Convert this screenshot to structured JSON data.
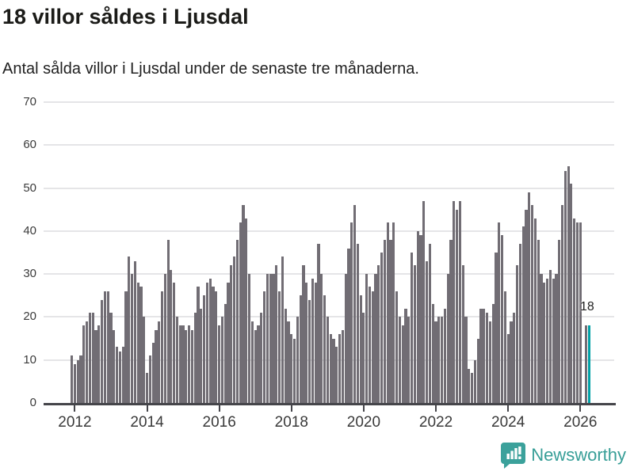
{
  "report": {
    "title": "18 villor såldes i Ljusdal",
    "subtitle": "Antal sålda villor i Ljusdal under de senaste tre månaderna."
  },
  "annotation": {
    "current_value_label": "18"
  },
  "footer": {
    "brand": "Newsworthy"
  },
  "colors": {
    "bar": "#716d74",
    "highlight": "#00a1a7",
    "grid": "#e5e5e7",
    "axis": "#45454a",
    "text": "#222222",
    "brand_teal": "#379e97"
  },
  "chart_data": {
    "type": "bar",
    "title": "18 villor såldes i Ljusdal",
    "subtitle": "Antal sålda villor i Ljusdal under de senaste tre månaderna.",
    "unit": "antal sålda villor (rullande tre månader)",
    "x_start": "2011-12",
    "frequency": "monthly",
    "values": [
      11,
      9,
      10,
      11,
      18,
      19,
      21,
      21,
      17,
      18,
      24,
      26,
      26,
      21,
      17,
      13,
      12,
      13,
      26,
      34,
      30,
      33,
      28,
      27,
      20,
      7,
      11,
      14,
      17,
      19,
      26,
      30,
      38,
      31,
      28,
      20,
      18,
      18,
      17,
      18,
      17,
      21,
      27,
      22,
      25,
      28,
      29,
      27,
      26,
      18,
      20,
      23,
      28,
      32,
      34,
      38,
      42,
      46,
      43,
      30,
      19,
      17,
      18,
      21,
      26,
      30,
      30,
      30,
      32,
      26,
      34,
      22,
      19,
      16,
      15,
      20,
      25,
      32,
      28,
      24,
      29,
      28,
      37,
      30,
      25,
      20,
      16,
      15,
      13,
      16,
      17,
      30,
      36,
      42,
      46,
      37,
      25,
      21,
      30,
      27,
      26,
      30,
      32,
      35,
      38,
      42,
      38,
      42,
      26,
      20,
      18,
      22,
      20,
      35,
      32,
      40,
      39,
      47,
      33,
      37,
      23,
      19,
      20,
      20,
      22,
      30,
      38,
      47,
      45,
      47,
      32,
      20,
      8,
      7,
      10,
      15,
      22,
      22,
      21,
      19,
      23,
      35,
      42,
      39,
      26,
      16,
      19,
      21,
      32,
      37,
      41,
      45,
      49,
      46,
      43,
      38,
      30,
      28,
      29,
      31,
      29,
      30,
      38,
      46,
      54,
      55,
      51,
      43,
      42,
      42,
      null,
      18,
      18
    ],
    "highlight_index": 172,
    "current_value": 18,
    "ylim": [
      0,
      70
    ],
    "yticks": [
      0,
      10,
      20,
      30,
      40,
      50,
      60,
      70
    ],
    "xtick_years": [
      "2012",
      "2014",
      "2016",
      "2018",
      "2020",
      "2022",
      "2024",
      "2026"
    ],
    "grid": true,
    "legend": "none"
  }
}
